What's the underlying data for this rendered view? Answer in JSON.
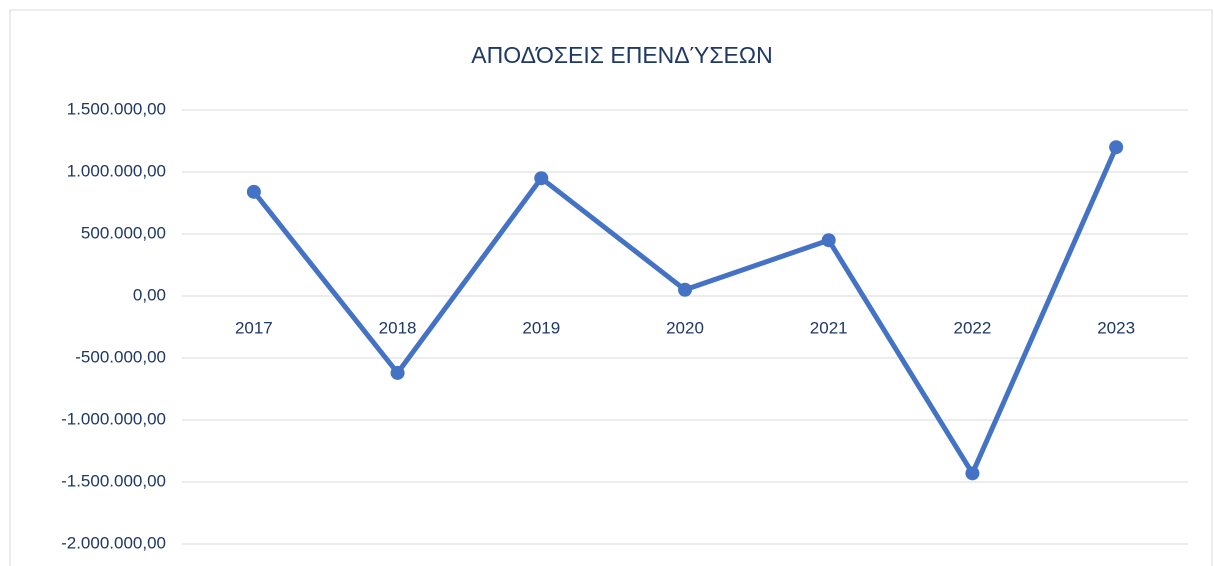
{
  "chart_data": {
    "type": "line",
    "title": "ΑΠΟΔΌΣΕΙΣ ΕΠΕΝΔΎΣΕΩΝ",
    "categories": [
      "2017",
      "2018",
      "2019",
      "2020",
      "2021",
      "2022",
      "2023"
    ],
    "series": [
      {
        "name": "Αποδόσεις",
        "color": "#4472c4",
        "values": [
          840000,
          -620000,
          950000,
          50000,
          450000,
          -1430000,
          1200000
        ]
      }
    ],
    "ylim": [
      -2000000,
      1500000
    ],
    "yticks": [
      {
        "value": -2000000,
        "label": "-2.000.000,00"
      },
      {
        "value": -1500000,
        "label": "-1.500.000,00"
      },
      {
        "value": -1000000,
        "label": "-1.000.000,00"
      },
      {
        "value": -500000,
        "label": "-500.000,00"
      },
      {
        "value": 0,
        "label": "0,00"
      },
      {
        "value": 500000,
        "label": "500.000,00"
      },
      {
        "value": 1000000,
        "label": "1.000.000,00"
      },
      {
        "value": 1500000,
        "label": "1.500.000,00"
      }
    ],
    "grid": true
  }
}
